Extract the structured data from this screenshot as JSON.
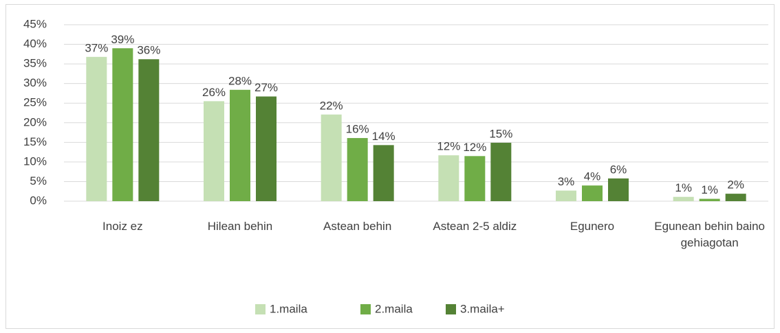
{
  "chart_data": {
    "type": "bar",
    "categories": [
      "Inoiz ez",
      "Hilean behin",
      "Astean behin",
      "Astean 2-5 aldiz",
      "Egunero",
      "Egunean behin baino gehiagotan"
    ],
    "series": [
      {
        "name": "1.maila",
        "color": "#c5e0b4",
        "values": [
          36.8,
          25.5,
          22.1,
          11.7,
          2.7,
          1.1
        ],
        "value_labels": [
          "37%",
          "26%",
          "22%",
          "12%",
          "3%",
          "1%"
        ]
      },
      {
        "name": "2.maila",
        "color": "#70ad47",
        "values": [
          39.0,
          28.4,
          16.1,
          11.5,
          4.0,
          0.6
        ],
        "value_labels": [
          "39%",
          "28%",
          "16%",
          "12%",
          "4%",
          "1%"
        ]
      },
      {
        "name": "3.maila+",
        "color": "#548235",
        "values": [
          36.2,
          26.7,
          14.3,
          14.9,
          5.8,
          1.9
        ],
        "value_labels": [
          "36%",
          "27%",
          "14%",
          "15%",
          "6%",
          "2%"
        ]
      }
    ],
    "ylim": [
      0,
      45
    ],
    "yticks": [
      {
        "value": 0,
        "label": "0%"
      },
      {
        "value": 5,
        "label": "5%"
      },
      {
        "value": 10,
        "label": "10%"
      },
      {
        "value": 15,
        "label": "15%"
      },
      {
        "value": 20,
        "label": "20%"
      },
      {
        "value": 25,
        "label": "25%"
      },
      {
        "value": 30,
        "label": "30%"
      },
      {
        "value": 35,
        "label": "35%"
      },
      {
        "value": 40,
        "label": "40%"
      },
      {
        "value": 45,
        "label": "45%"
      }
    ],
    "grid": true,
    "legend": "bottom"
  }
}
